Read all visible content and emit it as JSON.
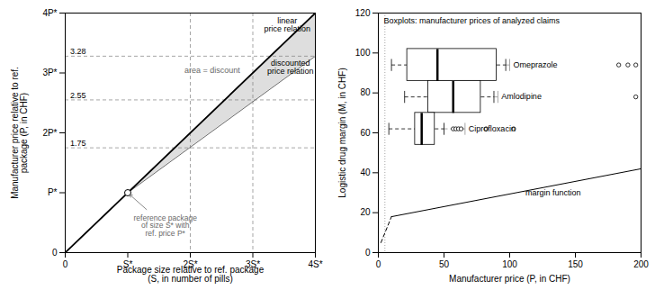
{
  "chart_data": [
    {
      "type": "line",
      "xlabel": "Package size relative to ref. package\n(S, in number of pills)",
      "ylabel": "Manufacturer price relative to ref.\npackage (P, in CHF)",
      "xlim": [
        0,
        4
      ],
      "ylim": [
        0,
        4
      ],
      "xticks": [
        0,
        {
          "value": 1,
          "label": "S*"
        },
        {
          "value": 2,
          "label": "2S*"
        },
        {
          "value": 3,
          "label": "3S*"
        },
        {
          "value": 4,
          "label": "4S*"
        }
      ],
      "yticks": [
        0,
        {
          "value": 1,
          "label": "P*"
        },
        {
          "value": 2,
          "label": "2P*"
        },
        {
          "value": 3,
          "label": "3P*"
        },
        {
          "value": 4,
          "label": "4P*"
        }
      ],
      "grid": false,
      "linear_line": {
        "x": [
          0,
          4
        ],
        "y": [
          0,
          4
        ]
      },
      "discounted_line": {
        "x": [
          1,
          4
        ],
        "y": [
          1,
          3.28
        ]
      },
      "discount_area": {
        "x": [
          1,
          4
        ],
        "y_low": [
          1,
          3.28
        ],
        "y_high": [
          1,
          4
        ]
      },
      "ref_point": [
        1,
        1
      ],
      "hlines": [
        1.75,
        2.55,
        3.28
      ],
      "vlines": [
        2,
        3,
        4
      ],
      "annotations": {
        "area": "area = discount",
        "linear": "linear\nprice relation",
        "discounted": "discounted\nprice relation",
        "ref": "reference package\nof size S* with\nref. price P*"
      }
    },
    {
      "type": "boxplot",
      "title": "Boxplots: manufacturer prices of analyzed claims",
      "xlabel": "Manufacturer price (P, in CHF)",
      "ylabel": "Logistic drug margin (M, in CHF)",
      "xlim": [
        0,
        200
      ],
      "ylim": [
        0,
        120
      ],
      "xticks": [
        0,
        50,
        100,
        150,
        200
      ],
      "yticks": [
        0,
        20,
        40,
        60,
        80,
        100,
        120
      ],
      "grid": false,
      "margin_function": {
        "x": [
          10,
          200
        ],
        "y": [
          18,
          42
        ]
      },
      "margin_function_dashed": {
        "x": [
          2,
          10
        ],
        "y": [
          5,
          18
        ]
      },
      "vline": 5,
      "hline": 0,
      "annotation": "margin function",
      "boxes": [
        {
          "name": "Omeprazole",
          "y": 94,
          "whisker_low": 10,
          "q1": 22,
          "median": 45,
          "q3": 90,
          "whisker_high": 97,
          "outliers": [
            183,
            190,
            196
          ],
          "label_x": 100
        },
        {
          "name": "Amlodipine",
          "y": 78,
          "whisker_low": 20,
          "q1": 38,
          "median": 57,
          "q3": 78,
          "whisker_high": 88,
          "outliers": [
            196
          ],
          "label_x": 91
        },
        {
          "name": "Ciprofloxacin",
          "y": 62,
          "whisker_low": 8,
          "q1": 28,
          "median": 33,
          "q3": 43,
          "whisker_high": 50,
          "outliers": [
            57,
            59,
            61,
            63,
            82,
            103
          ],
          "label_x": 66
        }
      ]
    }
  ]
}
